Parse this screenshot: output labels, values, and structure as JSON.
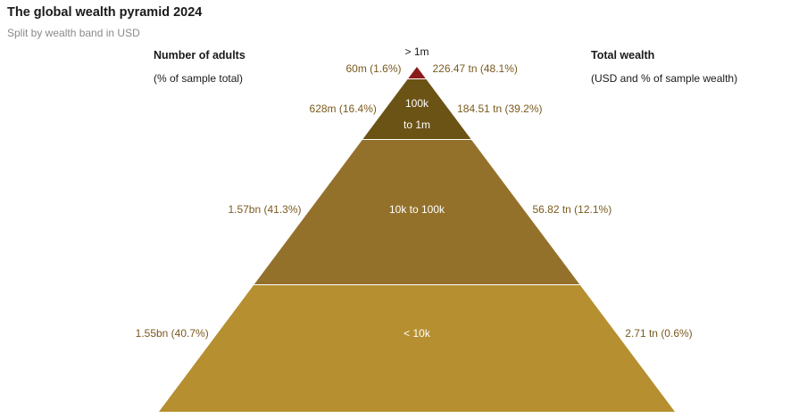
{
  "title": "The global wealth pyramid 2024",
  "subtitle": "Split by wealth band in USD",
  "left_header": {
    "title": "Number of adults",
    "subtitle": "(% of sample total)"
  },
  "right_header": {
    "title": "Total wealth",
    "subtitle": "(USD and % of sample wealth)"
  },
  "chart_data": {
    "type": "pyramid",
    "title": "The global wealth pyramid 2024",
    "subtitle": "Split by wealth band in USD",
    "tiers": [
      {
        "band": "> 1m",
        "adults_label": "60m (1.6%)",
        "adults": 60000000,
        "adults_pct": 1.6,
        "wealth_label": "226.47 tn (48.1%)",
        "wealth_usd_tn": 226.47,
        "wealth_pct": 48.1,
        "color": "#8b1a1a"
      },
      {
        "band_lines": [
          "100k",
          "to 1m"
        ],
        "adults_label": "628m (16.4%)",
        "adults": 628000000,
        "adults_pct": 16.4,
        "wealth_label": "184.51 tn (39.2%)",
        "wealth_usd_tn": 184.51,
        "wealth_pct": 39.2,
        "color": "#6b5316"
      },
      {
        "band": "10k to 100k",
        "adults_label": "1.57bn (41.3%)",
        "adults": 1570000000,
        "adults_pct": 41.3,
        "wealth_label": "56.82 tn (12.1%)",
        "wealth_usd_tn": 56.82,
        "wealth_pct": 12.1,
        "color": "#94712b"
      },
      {
        "band": "< 10k",
        "adults_label": "1.55bn (40.7%)",
        "adults": 1550000000,
        "adults_pct": 40.7,
        "wealth_label": "2.71 tn (0.6%)",
        "wealth_usd_tn": 2.71,
        "wealth_pct": 0.6,
        "color": "#b68f30"
      }
    ]
  },
  "colors": {
    "label_text": "#7a5a1e",
    "band_text": "#ffffff",
    "top_band_text": "#1a1a1a"
  }
}
